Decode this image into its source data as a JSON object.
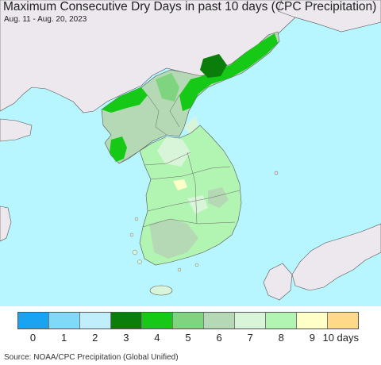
{
  "title": "Maximum Consecutive Dry Days in past 10 days (CPC Precipitation)",
  "subtitle": "Aug. 11 - Aug. 20, 2023",
  "source": "Source: NOAA/CPC Precipitation (Global Unified)",
  "legend": {
    "colors": [
      "#1aa3f0",
      "#7fd9f7",
      "#c0eefb",
      "#0b7d0b",
      "#16c916",
      "#7fd57f",
      "#b4d9b4",
      "#d9f5d9",
      "#b2f5b2",
      "#ffffc8",
      "#ffd98a"
    ],
    "tick_labels": [
      "0",
      "1",
      "2",
      "3",
      "4",
      "5",
      "6",
      "7",
      "8",
      "9",
      "10 days"
    ]
  },
  "colors": {
    "ocean": "#b8f6ff",
    "land_outside": "#ede8ee",
    "border": "#555555"
  }
}
